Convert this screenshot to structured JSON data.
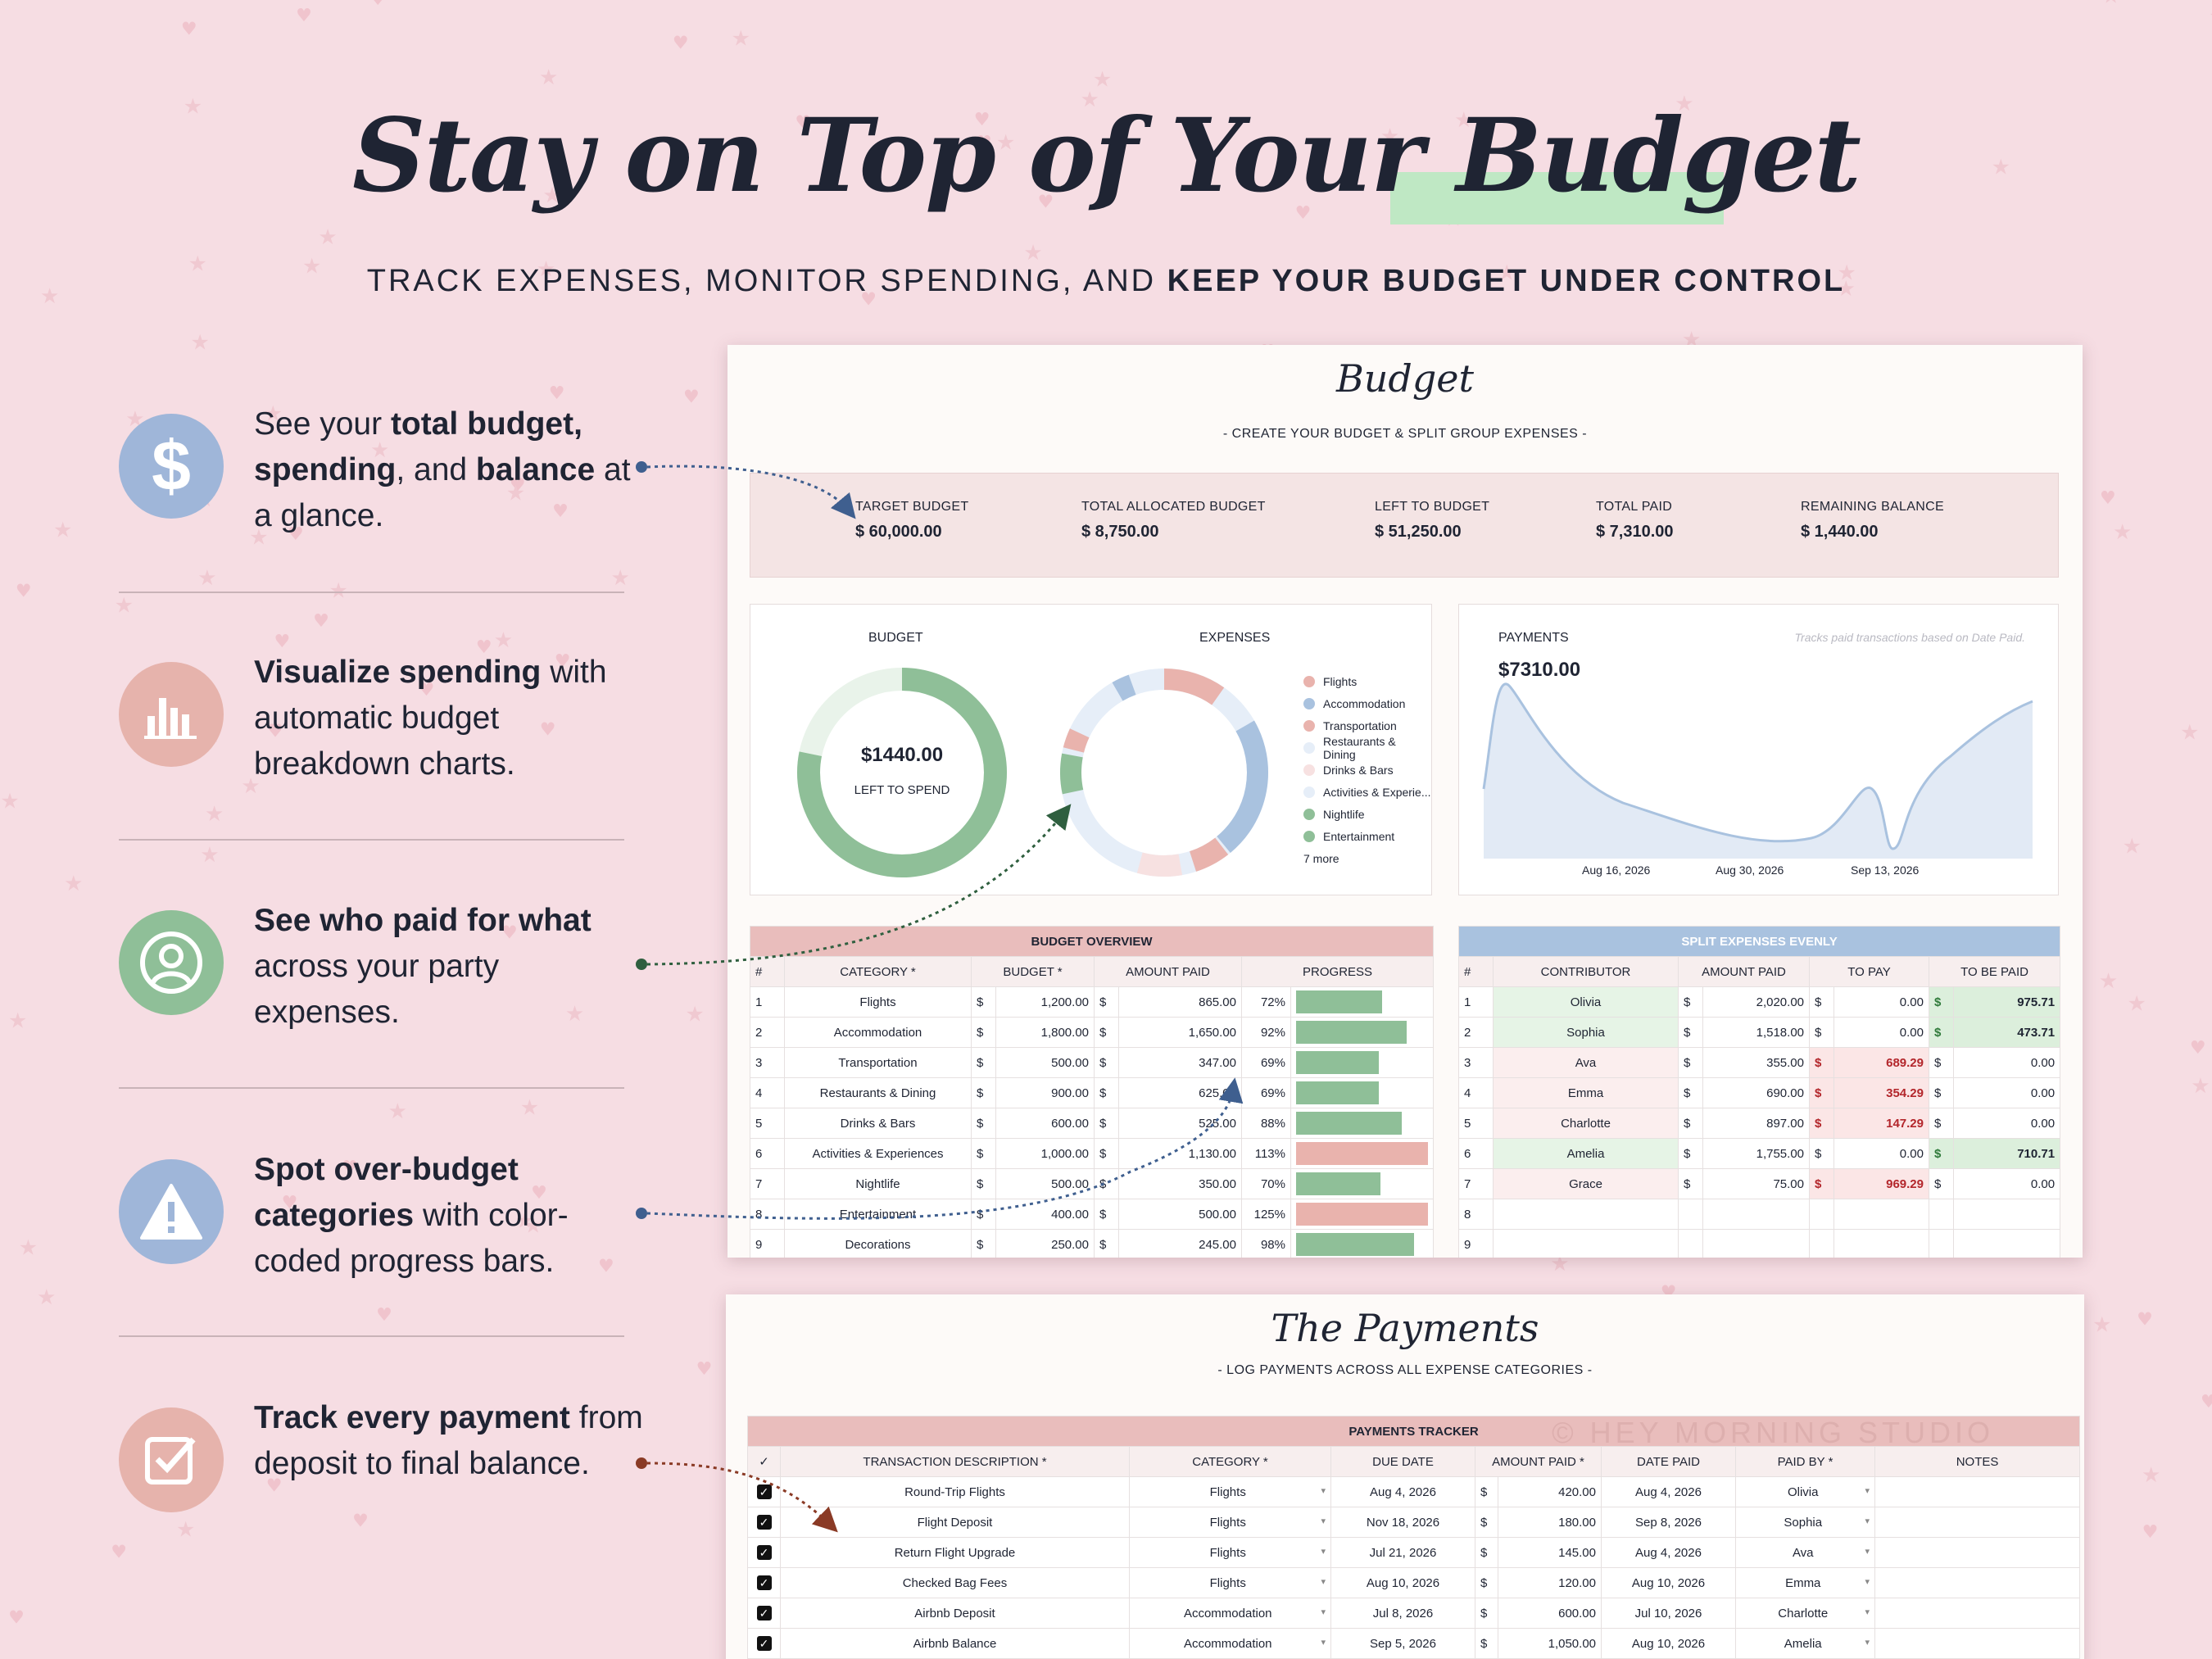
{
  "hero": {
    "title": "Stay on Top of Your Budget",
    "subtitle_regular": "TRACK EXPENSES, MONITOR SPENDING, AND ",
    "subtitle_bold": "KEEP YOUR BUDGET UNDER CONTROL"
  },
  "features": [
    {
      "icon": "dollar-icon",
      "color": "#9fb6d9",
      "parts": [
        "See your ",
        "total budget, spending",
        ", and ",
        "balance",
        " at a glance."
      ]
    },
    {
      "icon": "bar-chart-icon",
      "color": "#e6b3ac",
      "parts": [
        "Visualize spending",
        " with automatic budget breakdown charts."
      ]
    },
    {
      "icon": "user-icon",
      "color": "#8fbf98",
      "parts": [
        "See who paid for what",
        " across your party expenses."
      ]
    },
    {
      "icon": "warning-icon",
      "color": "#9fb6d9",
      "parts": [
        "Spot over-budget categories",
        " with color-coded progress bars."
      ]
    },
    {
      "icon": "checkbox-icon",
      "color": "#e6b3ac",
      "parts": [
        "Track every payment",
        " from deposit to final balance."
      ]
    }
  ],
  "budget": {
    "title": "Budget",
    "subtitle": "-     CREATE YOUR BUDGET & SPLIT GROUP EXPENSES -",
    "kpis": [
      {
        "label": "TARGET BUDGET",
        "value": "$   60,000.00"
      },
      {
        "label": "TOTAL ALLOCATED BUDGET",
        "value": "$   8,750.00"
      },
      {
        "label": "LEFT TO BUDGET",
        "value": "$   51,250.00"
      },
      {
        "label": "TOTAL PAID",
        "value": "$   7,310.00"
      },
      {
        "label": "REMAINING BALANCE",
        "value": "$   1,440.00"
      }
    ],
    "budget_label": "BUDGET",
    "donut_value": "$1440.00",
    "donut_caption": "LEFT TO SPEND",
    "expenses_label": "EXPENSES",
    "legend": [
      {
        "name": "Flights",
        "color": "#e9b3ad"
      },
      {
        "name": "Accommodation",
        "color": "#a9c2df"
      },
      {
        "name": "Transportation",
        "color": "#e9b3ad"
      },
      {
        "name": "Restaurants & Dining",
        "color": "#e6eef8"
      },
      {
        "name": "Drinks & Bars",
        "color": "#f7e1e1"
      },
      {
        "name": "Activities & Experie...",
        "color": "#e6eef8"
      },
      {
        "name": "Nightlife",
        "color": "#8fbf98"
      },
      {
        "name": "Entertainment",
        "color": "#8fbf98"
      }
    ],
    "legend_more": "7 more",
    "payments_label": "PAYMENTS",
    "payments_value": "$7310.00",
    "payments_note": "Tracks paid transactions based on Date Paid.",
    "payments_dates": [
      "Aug 16, 2026",
      "Aug 30, 2026",
      "Sep 13, 2026"
    ],
    "overview": {
      "title": "BUDGET OVERVIEW",
      "headers": [
        "#",
        "CATEGORY *",
        "BUDGET *",
        "AMOUNT PAID",
        "PROGRESS"
      ],
      "rows": [
        {
          "n": "1",
          "cat": "Flights",
          "budget": "1,200.00",
          "paid": "865.00",
          "pct": "72%",
          "p": 0.72
        },
        {
          "n": "2",
          "cat": "Accommodation",
          "budget": "1,800.00",
          "paid": "1,650.00",
          "pct": "92%",
          "p": 0.92
        },
        {
          "n": "3",
          "cat": "Transportation",
          "budget": "500.00",
          "paid": "347.00",
          "pct": "69%",
          "p": 0.69
        },
        {
          "n": "4",
          "cat": "Restaurants & Dining",
          "budget": "900.00",
          "paid": "625.00",
          "pct": "69%",
          "p": 0.69
        },
        {
          "n": "5",
          "cat": "Drinks & Bars",
          "budget": "600.00",
          "paid": "525.00",
          "pct": "88%",
          "p": 0.88
        },
        {
          "n": "6",
          "cat": "Activities & Experiences",
          "budget": "1,000.00",
          "paid": "1,130.00",
          "pct": "113%",
          "p": 1.13
        },
        {
          "n": "7",
          "cat": "Nightlife",
          "budget": "500.00",
          "paid": "350.00",
          "pct": "70%",
          "p": 0.7
        },
        {
          "n": "8",
          "cat": "Entertainment",
          "budget": "400.00",
          "paid": "500.00",
          "pct": "125%",
          "p": 1.25
        },
        {
          "n": "9",
          "cat": "Decorations",
          "budget": "250.00",
          "paid": "245.00",
          "pct": "98%",
          "p": 0.98
        }
      ]
    },
    "split": {
      "title": "SPLIT EXPENSES EVENLY",
      "headers": [
        "#",
        "CONTRIBUTOR",
        "AMOUNT PAID",
        "TO PAY",
        "TO BE PAID"
      ],
      "rows": [
        {
          "n": "1",
          "name": "Olivia",
          "paid": "2,020.00",
          "topay": "0.00",
          "tobe": "975.71"
        },
        {
          "n": "2",
          "name": "Sophia",
          "paid": "1,518.00",
          "topay": "0.00",
          "tobe": "473.71"
        },
        {
          "n": "3",
          "name": "Ava",
          "paid": "355.00",
          "topay": "689.29",
          "tobe": "0.00"
        },
        {
          "n": "4",
          "name": "Emma",
          "paid": "690.00",
          "topay": "354.29",
          "tobe": "0.00"
        },
        {
          "n": "5",
          "name": "Charlotte",
          "paid": "897.00",
          "topay": "147.29",
          "tobe": "0.00"
        },
        {
          "n": "6",
          "name": "Amelia",
          "paid": "1,755.00",
          "topay": "0.00",
          "tobe": "710.71"
        },
        {
          "n": "7",
          "name": "Grace",
          "paid": "75.00",
          "topay": "969.29",
          "tobe": "0.00"
        },
        {
          "n": "8",
          "name": "",
          "paid": "",
          "topay": "",
          "tobe": ""
        },
        {
          "n": "9",
          "name": "",
          "paid": "",
          "topay": "",
          "tobe": ""
        }
      ]
    }
  },
  "payments": {
    "title": "The Payments",
    "subtitle": "-     LOG PAYMENTS ACROSS ALL EXPENSE CATEGORIES -",
    "tracker_title": "PAYMENTS TRACKER",
    "watermark": "© HEY MORNING STUDIO",
    "headers": [
      "✓",
      "TRANSACTION DESCRIPTION *",
      "CATEGORY *",
      "DUE DATE",
      "AMOUNT PAID *",
      "DATE PAID",
      "PAID BY *",
      "NOTES"
    ],
    "rows": [
      {
        "desc": "Round-Trip Flights",
        "cat": "Flights",
        "due": "Aug 4, 2026",
        "amt": "420.00",
        "date": "Aug 4, 2026",
        "by": "Olivia"
      },
      {
        "desc": "Flight Deposit",
        "cat": "Flights",
        "due": "Nov 18, 2026",
        "amt": "180.00",
        "date": "Sep 8, 2026",
        "by": "Sophia"
      },
      {
        "desc": "Return Flight Upgrade",
        "cat": "Flights",
        "due": "Jul 21, 2026",
        "amt": "145.00",
        "date": "Aug 4, 2026",
        "by": "Ava"
      },
      {
        "desc": "Checked Bag Fees",
        "cat": "Flights",
        "due": "Aug 10, 2026",
        "amt": "120.00",
        "date": "Aug 10, 2026",
        "by": "Emma"
      },
      {
        "desc": "Airbnb Deposit",
        "cat": "Accommodation",
        "due": "Jul 8, 2026",
        "amt": "600.00",
        "date": "Jul 10, 2026",
        "by": "Charlotte"
      },
      {
        "desc": "Airbnb Balance",
        "cat": "Accommodation",
        "due": "Sep 5, 2026",
        "amt": "1,050.00",
        "date": "Aug 10, 2026",
        "by": "Amelia"
      }
    ]
  },
  "colors": {
    "green": "#8fbf98",
    "pink": "#e9b3ad",
    "blue": "#a9c2df",
    "ink": "#1f2433"
  }
}
